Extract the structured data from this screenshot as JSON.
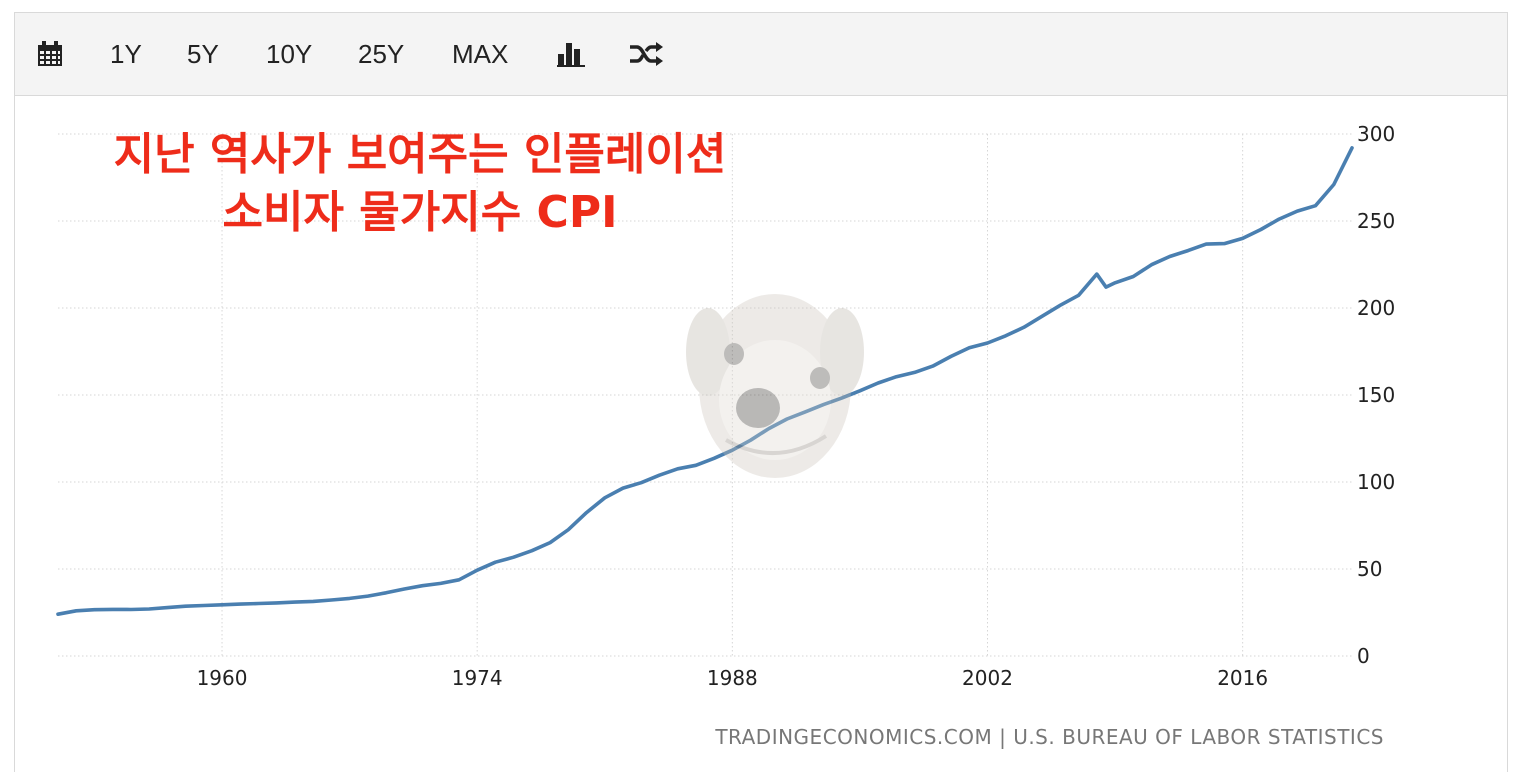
{
  "toolbar": {
    "items": [
      {
        "label": "",
        "icon": "calendar-icon"
      },
      {
        "label": "1Y"
      },
      {
        "label": "5Y"
      },
      {
        "label": "10Y"
      },
      {
        "label": "25Y"
      },
      {
        "label": "MAX"
      },
      {
        "label": "",
        "icon": "bar-chart-icon"
      },
      {
        "label": "",
        "icon": "shuffle-icon"
      }
    ]
  },
  "overlay": {
    "title_line1": "지난 역사가 보여주는 인플레이션",
    "title_line2": "소비자 물가지수 CPI",
    "title_color": "#ee2c1a",
    "watermark_icon": "dog-face-icon"
  },
  "source": "TRADINGECONOMICS.COM | U.S. BUREAU OF LABOR STATISTICS",
  "chart_data": {
    "type": "line",
    "title": "",
    "xlabel": "",
    "ylabel": "",
    "xlim": [
      1951,
      2022
    ],
    "ylim": [
      0,
      300
    ],
    "x_ticks": [
      1960,
      1974,
      1988,
      2002,
      2016
    ],
    "y_ticks": [
      0,
      50,
      100,
      150,
      200,
      250,
      300
    ],
    "y_axis_side": "right",
    "grid": true,
    "legend": "none",
    "line_color": "#4a7fb0",
    "series": [
      {
        "x": [
          1951,
          1952,
          1953,
          1954,
          1955,
          1956,
          1957,
          1958,
          1959,
          1960,
          1961,
          1962,
          1963,
          1964,
          1965,
          1966,
          1967,
          1968,
          1969,
          1970,
          1971,
          1972,
          1973,
          1974,
          1975,
          1976,
          1977,
          1978,
          1979,
          1980,
          1981,
          1982,
          1983,
          1984,
          1985,
          1986,
          1987,
          1988,
          1989,
          1990,
          1991,
          1992,
          1993,
          1994,
          1995,
          1996,
          1997,
          1998,
          1999,
          2000,
          2001,
          2002,
          2003,
          2004,
          2005,
          2006,
          2007,
          2008,
          2008.5,
          2009,
          2010,
          2011,
          2012,
          2013,
          2014,
          2015,
          2016,
          2017,
          2018,
          2019,
          2020,
          2021,
          2022
        ],
        "values": [
          24.0,
          26.0,
          26.6,
          26.8,
          26.7,
          27.0,
          27.8,
          28.6,
          29.0,
          29.4,
          29.8,
          30.2,
          30.5,
          31.0,
          31.4,
          32.2,
          33.1,
          34.4,
          36.3,
          38.5,
          40.4,
          41.7,
          43.8,
          49.3,
          53.9,
          56.8,
          60.5,
          65.2,
          72.6,
          82.4,
          90.9,
          96.5,
          99.6,
          103.9,
          107.6,
          109.6,
          113.6,
          118.3,
          124.0,
          130.7,
          136.2,
          140.3,
          144.5,
          148.2,
          152.4,
          156.9,
          160.5,
          163.0,
          166.6,
          172.2,
          177.1,
          179.9,
          184.0,
          188.9,
          195.3,
          201.6,
          207.3,
          219.5,
          212.0,
          214.5,
          218.1,
          224.9,
          229.6,
          233.0,
          236.7,
          237.0,
          240.0,
          245.1,
          251.1,
          255.7,
          258.8,
          271.0,
          292.0
        ]
      }
    ]
  }
}
